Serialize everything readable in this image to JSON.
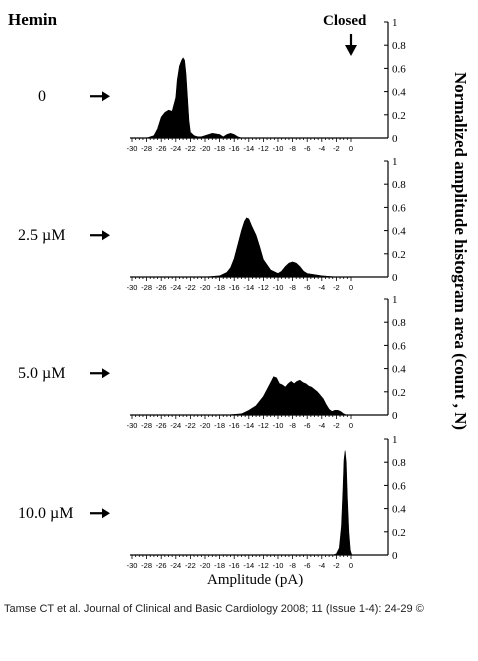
{
  "figure": {
    "agent_label": "Hemin",
    "closed_label": "Closed",
    "y_axis_label": "Normalized amplitude histogram area (count , N)",
    "x_axis_label": "Amplitude (pA)",
    "citation": "Tamse CT et al. Journal of Clinical and Basic Cardiology 2008; 11 (Issue 1-4): 24-29 ©"
  },
  "chart_data": [
    {
      "type": "area",
      "condition_label": "0",
      "xlim": [
        -30,
        0
      ],
      "ylim": [
        0,
        1
      ],
      "x_ticks": [
        -30,
        -28,
        -26,
        -24,
        -22,
        -20,
        -18,
        -16,
        -14,
        -12,
        -10,
        -8,
        -6,
        -4,
        -2,
        0
      ],
      "y_ticks": [
        0,
        0.2,
        0.4,
        0.6,
        0.8,
        1
      ],
      "x": [
        -28,
        -27,
        -26.5,
        -26,
        -25.5,
        -25,
        -24.5,
        -24,
        -23.8,
        -23.5,
        -23.2,
        -23,
        -22.8,
        -22.6,
        -22.4,
        -22.2,
        -22,
        -21.5,
        -21,
        -20.5,
        -20,
        -19,
        -18,
        -17.5,
        -17,
        -16.5,
        -16,
        -15.5,
        -15,
        -14
      ],
      "y": [
        0,
        0.02,
        0.08,
        0.18,
        0.22,
        0.24,
        0.23,
        0.35,
        0.5,
        0.62,
        0.67,
        0.69,
        0.67,
        0.55,
        0.35,
        0.15,
        0.05,
        0.02,
        0.01,
        0.01,
        0.02,
        0.04,
        0.03,
        0.01,
        0.03,
        0.04,
        0.03,
        0.01,
        0,
        0
      ]
    },
    {
      "type": "area",
      "condition_label": "2.5 µM",
      "xlim": [
        -30,
        0
      ],
      "ylim": [
        0,
        1
      ],
      "x_ticks": [
        -30,
        -28,
        -26,
        -24,
        -22,
        -20,
        -18,
        -16,
        -14,
        -12,
        -10,
        -8,
        -6,
        -4,
        -2,
        0
      ],
      "y_ticks": [
        0,
        0.2,
        0.4,
        0.6,
        0.8,
        1
      ],
      "x": [
        -20,
        -18,
        -17,
        -16.5,
        -16,
        -15.5,
        -15,
        -14.6,
        -14.3,
        -14,
        -13.6,
        -13,
        -12.5,
        -12,
        -11,
        -10,
        -9.5,
        -9,
        -8.5,
        -8,
        -7.5,
        -7,
        -6.5,
        -6,
        -5,
        -4,
        -3,
        -2
      ],
      "y": [
        0,
        0.01,
        0.04,
        0.08,
        0.16,
        0.28,
        0.4,
        0.48,
        0.51,
        0.5,
        0.44,
        0.36,
        0.26,
        0.15,
        0.06,
        0.03,
        0.05,
        0.09,
        0.12,
        0.13,
        0.12,
        0.09,
        0.05,
        0.03,
        0.02,
        0.01,
        0.005,
        0
      ]
    },
    {
      "type": "area",
      "condition_label": "5.0 µM",
      "xlim": [
        -30,
        0
      ],
      "ylim": [
        0,
        1
      ],
      "x_ticks": [
        -30,
        -28,
        -26,
        -24,
        -22,
        -20,
        -18,
        -16,
        -14,
        -12,
        -10,
        -8,
        -6,
        -4,
        -2,
        0
      ],
      "y_ticks": [
        0,
        0.2,
        0.4,
        0.6,
        0.8,
        1
      ],
      "x": [
        -17,
        -15,
        -14,
        -13,
        -12,
        -11.5,
        -11,
        -10.6,
        -10.2,
        -9.8,
        -9.4,
        -9,
        -8.6,
        -8.2,
        -7.8,
        -7.4,
        -7,
        -6.6,
        -6.2,
        -5.8,
        -5.4,
        -5,
        -4.6,
        -4.2,
        -3.8,
        -3.4,
        -3,
        -2.6,
        -2.2,
        -1.8,
        -1.4,
        -1,
        -0.6
      ],
      "y": [
        0,
        0.01,
        0.04,
        0.08,
        0.16,
        0.22,
        0.28,
        0.33,
        0.32,
        0.27,
        0.26,
        0.24,
        0.27,
        0.29,
        0.27,
        0.29,
        0.3,
        0.28,
        0.27,
        0.25,
        0.24,
        0.22,
        0.2,
        0.17,
        0.14,
        0.09,
        0.05,
        0.03,
        0.04,
        0.04,
        0.03,
        0.01,
        0
      ]
    },
    {
      "type": "area",
      "condition_label": "10.0 µM",
      "xlim": [
        -30,
        0
      ],
      "ylim": [
        0,
        1
      ],
      "x_ticks": [
        -30,
        -28,
        -26,
        -24,
        -22,
        -20,
        -18,
        -16,
        -14,
        -12,
        -10,
        -8,
        -6,
        -4,
        -2,
        0
      ],
      "y_ticks": [
        0,
        0.2,
        0.4,
        0.6,
        0.8,
        1
      ],
      "x": [
        -2.4,
        -2,
        -1.6,
        -1.3,
        -1.1,
        -0.95,
        -0.8,
        -0.65,
        -0.5,
        -0.3,
        -0.1,
        0.1
      ],
      "y": [
        0,
        0.01,
        0.06,
        0.25,
        0.55,
        0.82,
        0.9,
        0.8,
        0.5,
        0.2,
        0.04,
        0
      ]
    }
  ]
}
